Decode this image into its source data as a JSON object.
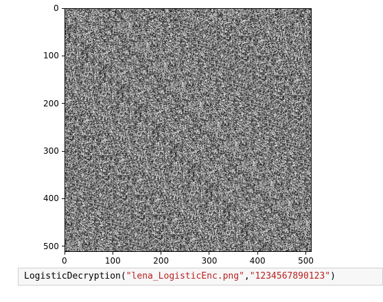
{
  "figure": {
    "image_description_type": "grayscale noise image (encrypted)",
    "x_ticks": [
      "0",
      "100",
      "200",
      "300",
      "400",
      "500"
    ],
    "y_ticks": [
      "0",
      "100",
      "200",
      "300",
      "400",
      "500"
    ],
    "x_range": [
      0,
      512
    ],
    "y_range": [
      0,
      512
    ]
  },
  "code_cell": {
    "function": "LogisticDecryption(",
    "arg1": "\"lena_LogisticEnc.png\"",
    "sep": ",",
    "arg2": "\"1234567890123\"",
    "close": ")"
  }
}
